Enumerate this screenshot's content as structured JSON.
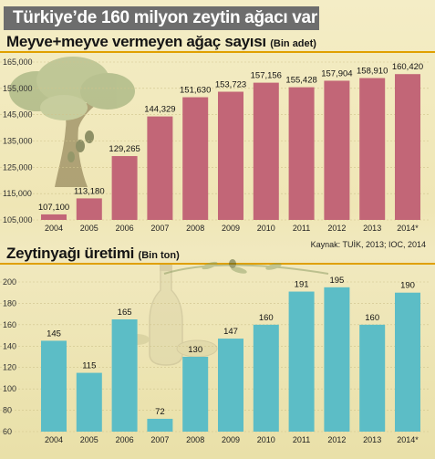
{
  "page_title": "Türkiye’de 160 milyon zeytin ağacı var",
  "source": "Kaynak: TUİK, 2013; IOC, 2014",
  "colors": {
    "trees_bar": "#c26677",
    "oil_bar": "#5cbdc6",
    "accent_rule": "#e0a000",
    "title_band": "#6d6d6d"
  },
  "chart_data": [
    {
      "type": "bar",
      "title": "Meyve+meyve vermeyen ağaç sayısı",
      "unit": "(Bin adet)",
      "categories": [
        "2004",
        "2005",
        "2006",
        "2007",
        "2008",
        "2009",
        "2010",
        "2011",
        "2012",
        "2013",
        "2014*"
      ],
      "values": [
        107100,
        113180,
        129265,
        144329,
        151630,
        153723,
        157156,
        155428,
        157904,
        158910,
        160420
      ],
      "value_labels": [
        "107,100",
        "113,180",
        "129,265",
        "144,329",
        "151,630",
        "153,723",
        "157,156",
        "155,428",
        "157,904",
        "158,910",
        "160,420"
      ],
      "yticks": [
        "105,000",
        "115,000",
        "125,000",
        "135,000",
        "145,000",
        "155,000",
        "165,000"
      ],
      "ylim": [
        105000,
        165000
      ]
    },
    {
      "type": "bar",
      "title": "Zeytinyağı üretimi",
      "unit": "(Bin ton)",
      "categories": [
        "2004",
        "2005",
        "2006",
        "2007",
        "2008",
        "2009",
        "2010",
        "2011",
        "2012",
        "2013",
        "2014*"
      ],
      "values": [
        145,
        115,
        165,
        72,
        130,
        147,
        160,
        191,
        195,
        160,
        190
      ],
      "value_labels": [
        "145",
        "115",
        "165",
        "72",
        "130",
        "147",
        "160",
        "191",
        "195",
        "160",
        "190"
      ],
      "yticks": [
        "60",
        "80",
        "100",
        "120",
        "140",
        "160",
        "180",
        "200"
      ],
      "ylim": [
        60,
        200
      ]
    }
  ]
}
